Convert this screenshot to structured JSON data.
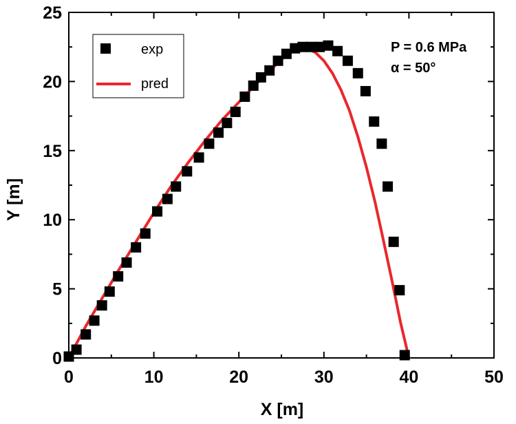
{
  "chart_data": {
    "type": "scatter",
    "title": "",
    "xlabel": "X [m]",
    "ylabel": "Y [m]",
    "xlim": [
      0,
      50
    ],
    "ylim": [
      0,
      25
    ],
    "xticks": [
      "0",
      "10",
      "20",
      "30",
      "40",
      "50"
    ],
    "yticks": [
      "0",
      "5",
      "10",
      "15",
      "20",
      "25"
    ],
    "grid": false,
    "legend_position": "top-left",
    "annotations": [
      "P = 0.6 MPa",
      "α = 50°"
    ],
    "series": [
      {
        "name": "exp",
        "type": "scatter",
        "marker": "square",
        "color": "#000000",
        "points": [
          [
            0.0,
            0.1
          ],
          [
            0.9,
            0.6
          ],
          [
            2.0,
            1.7
          ],
          [
            3.0,
            2.7
          ],
          [
            3.9,
            3.8
          ],
          [
            4.8,
            4.8
          ],
          [
            5.8,
            5.9
          ],
          [
            6.8,
            6.9
          ],
          [
            7.9,
            8.0
          ],
          [
            9.0,
            9.0
          ],
          [
            10.4,
            10.6
          ],
          [
            11.6,
            11.5
          ],
          [
            12.6,
            12.4
          ],
          [
            13.9,
            13.5
          ],
          [
            15.3,
            14.5
          ],
          [
            16.5,
            15.5
          ],
          [
            17.6,
            16.3
          ],
          [
            18.6,
            17.0
          ],
          [
            19.6,
            17.8
          ],
          [
            20.7,
            18.9
          ],
          [
            21.7,
            19.7
          ],
          [
            22.6,
            20.3
          ],
          [
            23.6,
            20.8
          ],
          [
            24.6,
            21.5
          ],
          [
            25.6,
            22.0
          ],
          [
            26.6,
            22.4
          ],
          [
            27.5,
            22.5
          ],
          [
            28.5,
            22.5
          ],
          [
            29.5,
            22.5
          ],
          [
            30.5,
            22.6
          ],
          [
            31.6,
            22.2
          ],
          [
            32.8,
            21.5
          ],
          [
            34.0,
            20.6
          ],
          [
            34.9,
            19.3
          ],
          [
            35.9,
            17.1
          ],
          [
            36.8,
            15.5
          ],
          [
            37.5,
            12.4
          ],
          [
            38.2,
            8.4
          ],
          [
            38.9,
            4.9
          ],
          [
            39.5,
            0.2
          ]
        ]
      },
      {
        "name": "pred",
        "type": "line",
        "color": "#e8282d",
        "points": [
          [
            0,
            0
          ],
          [
            2,
            2.3
          ],
          [
            4,
            4.4
          ],
          [
            6,
            6.5
          ],
          [
            8,
            8.5
          ],
          [
            10,
            10.5
          ],
          [
            12,
            12.4
          ],
          [
            14,
            14.1
          ],
          [
            16,
            15.7
          ],
          [
            18,
            17.2
          ],
          [
            20,
            18.5
          ],
          [
            22,
            19.8
          ],
          [
            24,
            21.0
          ],
          [
            25,
            21.6
          ],
          [
            26,
            22.1
          ],
          [
            27,
            22.4
          ],
          [
            28,
            22.4
          ],
          [
            29,
            22.1
          ],
          [
            30,
            21.5
          ],
          [
            31,
            20.6
          ],
          [
            32,
            19.4
          ],
          [
            33,
            17.9
          ],
          [
            34,
            16.0
          ],
          [
            35,
            13.8
          ],
          [
            36,
            11.3
          ],
          [
            37,
            8.5
          ],
          [
            38,
            5.6
          ],
          [
            39,
            2.6
          ],
          [
            40,
            0
          ]
        ]
      }
    ]
  }
}
